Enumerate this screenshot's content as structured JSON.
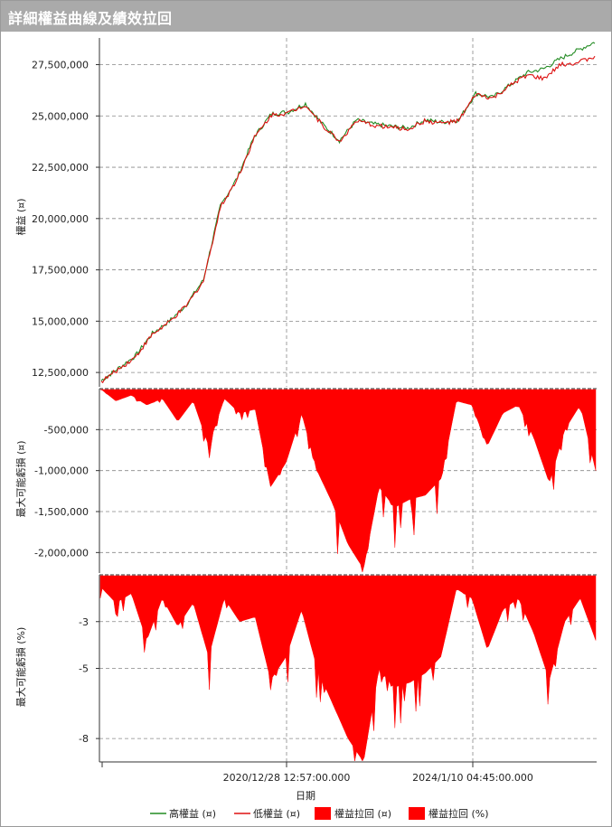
{
  "window": {
    "title": "詳細權益曲線及績效拉回"
  },
  "chart_data": [
    {
      "type": "line",
      "ylabel": "權益 (¤)",
      "y_ticks": [
        "27,500,000",
        "25,000,000",
        "22,500,000",
        "20,000,000",
        "17,500,000",
        "15,000,000",
        "12,500,000"
      ],
      "ylim": [
        11800000,
        28800000
      ],
      "x": [
        "2018/06",
        "2018/12",
        "2019/06",
        "2019/09",
        "2019/12",
        "2020/03",
        "2020/06",
        "2020/09",
        "2020/12",
        "2021/02",
        "2021/04",
        "2021/06",
        "2021/09",
        "2021/12",
        "2022/03",
        "2022/06",
        "2022/09",
        "2022/12",
        "2023/03",
        "2023/06",
        "2023/09",
        "2023/12",
        "2024/02",
        "2024/04",
        "2024/06",
        "2024/09",
        "2024/12",
        "2025/03",
        "2025/06",
        "2025/08"
      ],
      "series": [
        {
          "name": "高權益 (¤)",
          "color": "#228b22",
          "values": [
            12100000,
            12700000,
            13300000,
            14400000,
            15000000,
            15800000,
            17000000,
            20600000,
            22000000,
            24000000,
            25100000,
            25200000,
            25600000,
            24600000,
            23800000,
            24800000,
            24600000,
            24500000,
            24400000,
            24800000,
            24700000,
            24800000,
            26100000,
            25900000,
            26500000,
            27100000,
            27300000,
            27800000,
            28200000,
            28600000
          ]
        },
        {
          "name": "低權益 (¤)",
          "color": "#dd1111",
          "values": [
            12050000,
            12650000,
            13250000,
            14350000,
            14950000,
            15750000,
            16950000,
            20550000,
            21950000,
            23950000,
            25050000,
            25150000,
            25550000,
            24550000,
            23750000,
            24750000,
            24550000,
            24450000,
            24350000,
            24750000,
            24650000,
            24750000,
            26050000,
            25850000,
            26450000,
            27000000,
            26800000,
            27500000,
            27600000,
            27900000
          ]
        }
      ]
    },
    {
      "type": "area",
      "ylabel": "最大可能虧損 (¤)",
      "y_ticks": [
        "-500,000",
        "-1,000,000",
        "-1,500,000",
        "-2,000,000"
      ],
      "ylim": [
        -2250000,
        0
      ],
      "series": [
        {
          "name": "權益拉回 (¤)",
          "color": "#ff0000",
          "values": [
            0,
            -150000,
            -80000,
            -200000,
            -120000,
            -400000,
            -150000,
            -700000,
            -120000,
            -300000,
            -250000,
            -1200000,
            -900000,
            -300000,
            -1000000,
            -1400000,
            -1900000,
            -2200000,
            -1200000,
            -1450000,
            -1350000,
            -1300000,
            -1100000,
            -150000,
            -200000,
            -700000,
            -300000,
            -200000,
            -600000,
            -1150000,
            -500000,
            -200000,
            -1000000
          ]
        }
      ]
    },
    {
      "type": "area",
      "ylabel": "最大可能虧損 (%)",
      "y_ticks": [
        "-3",
        "-5",
        "-8"
      ],
      "ylim": [
        -9.0,
        -1.0
      ],
      "series": [
        {
          "name": "權益拉回 (%)",
          "color": "#ff0000",
          "values": [
            -1.5,
            -2.2,
            -1.8,
            -3.8,
            -2.0,
            -3.2,
            -2.2,
            -4.5,
            -2.0,
            -3.0,
            -2.8,
            -5.5,
            -4.5,
            -2.5,
            -5.0,
            -6.5,
            -8.0,
            -9.0,
            -5.0,
            -5.8,
            -5.6,
            -5.2,
            -4.5,
            -1.6,
            -2.0,
            -4.2,
            -2.5,
            -2.0,
            -3.5,
            -5.5,
            -3.0,
            -2.0,
            -3.8
          ]
        }
      ]
    }
  ],
  "x_axis": {
    "title": "日期",
    "ticks": [
      "2020/12/28 12:57:00.000",
      "2024/1/10 04:45:00.000"
    ]
  },
  "legend": [
    {
      "label": "高權益 (¤)",
      "color": "#228b22",
      "kind": "line"
    },
    {
      "label": "低權益 (¤)",
      "color": "#dd1111",
      "kind": "line"
    },
    {
      "label": "權益拉回 (¤)",
      "color": "#ff0000",
      "kind": "box"
    },
    {
      "label": "權益拉回 (%)",
      "color": "#ff0000",
      "kind": "box"
    }
  ]
}
